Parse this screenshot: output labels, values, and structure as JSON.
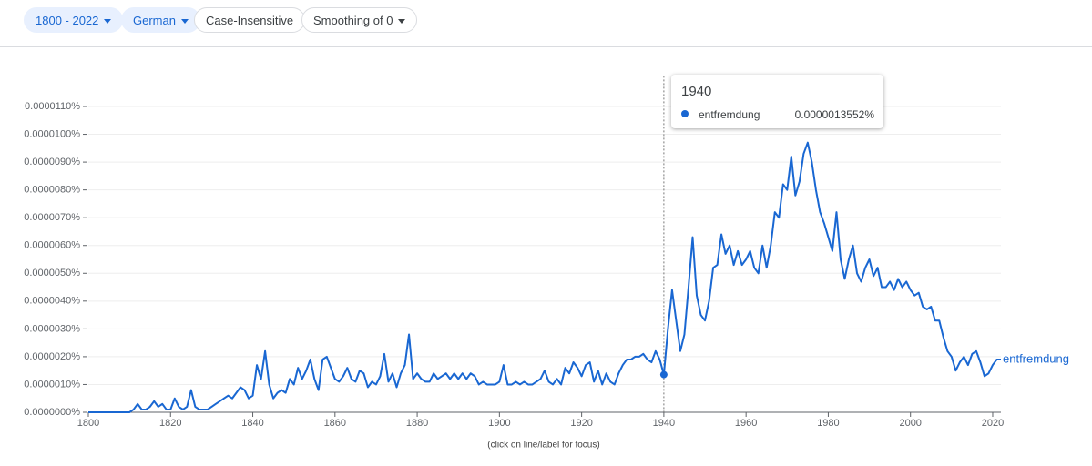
{
  "controls": {
    "year_range": "1800 - 2022",
    "corpus": "German",
    "case": "Case-Insensitive",
    "smoothing": "Smoothing of 0"
  },
  "chart_data": {
    "type": "line",
    "x": [
      1800,
      1801,
      1802,
      1803,
      1804,
      1805,
      1806,
      1807,
      1808,
      1809,
      1810,
      1811,
      1812,
      1813,
      1814,
      1815,
      1816,
      1817,
      1818,
      1819,
      1820,
      1821,
      1822,
      1823,
      1824,
      1825,
      1826,
      1827,
      1828,
      1829,
      1830,
      1831,
      1832,
      1833,
      1834,
      1835,
      1836,
      1837,
      1838,
      1839,
      1840,
      1841,
      1842,
      1843,
      1844,
      1845,
      1846,
      1847,
      1848,
      1849,
      1850,
      1851,
      1852,
      1853,
      1854,
      1855,
      1856,
      1857,
      1858,
      1859,
      1860,
      1861,
      1862,
      1863,
      1864,
      1865,
      1866,
      1867,
      1868,
      1869,
      1870,
      1871,
      1872,
      1873,
      1874,
      1875,
      1876,
      1877,
      1878,
      1879,
      1880,
      1881,
      1882,
      1883,
      1884,
      1885,
      1886,
      1887,
      1888,
      1889,
      1890,
      1891,
      1892,
      1893,
      1894,
      1895,
      1896,
      1897,
      1898,
      1899,
      1900,
      1901,
      1902,
      1903,
      1904,
      1905,
      1906,
      1907,
      1908,
      1909,
      1910,
      1911,
      1912,
      1913,
      1914,
      1915,
      1916,
      1917,
      1918,
      1919,
      1920,
      1921,
      1922,
      1923,
      1924,
      1925,
      1926,
      1927,
      1928,
      1929,
      1930,
      1931,
      1932,
      1933,
      1934,
      1935,
      1936,
      1937,
      1938,
      1939,
      1940,
      1941,
      1942,
      1943,
      1944,
      1945,
      1946,
      1947,
      1948,
      1949,
      1950,
      1951,
      1952,
      1953,
      1954,
      1955,
      1956,
      1957,
      1958,
      1959,
      1960,
      1961,
      1962,
      1963,
      1964,
      1965,
      1966,
      1967,
      1968,
      1969,
      1970,
      1971,
      1972,
      1973,
      1974,
      1975,
      1976,
      1977,
      1978,
      1979,
      1980,
      1981,
      1982,
      1983,
      1984,
      1985,
      1986,
      1987,
      1988,
      1989,
      1990,
      1991,
      1992,
      1993,
      1994,
      1995,
      1996,
      1997,
      1998,
      1999,
      2000,
      2001,
      2002,
      2003,
      2004,
      2005,
      2006,
      2007,
      2008,
      2009,
      2010,
      2011,
      2012,
      2013,
      2014,
      2015,
      2016,
      2017,
      2018,
      2019,
      2020,
      2021,
      2022
    ],
    "series": [
      {
        "name": "entfremdung",
        "color": "#1967d2",
        "values": [
          0,
          0,
          0,
          0,
          0,
          0,
          0,
          0,
          0,
          0,
          0,
          1e-07,
          3e-07,
          1e-07,
          1e-07,
          2e-07,
          4e-07,
          2e-07,
          3e-07,
          1e-07,
          1e-07,
          5e-07,
          2e-07,
          1e-07,
          2e-07,
          8e-07,
          2e-07,
          1e-07,
          1e-07,
          1e-07,
          2e-07,
          3e-07,
          4e-07,
          5e-07,
          6e-07,
          5e-07,
          7e-07,
          9e-07,
          8e-07,
          5e-07,
          6e-07,
          1.7e-06,
          1.2e-06,
          2.2e-06,
          1e-06,
          5e-07,
          7e-07,
          8e-07,
          7e-07,
          1.2e-06,
          1e-06,
          1.6e-06,
          1.2e-06,
          1.5e-06,
          1.9e-06,
          1.2e-06,
          8e-07,
          1.9e-06,
          2e-06,
          1.6e-06,
          1.2e-06,
          1.1e-06,
          1.3e-06,
          1.6e-06,
          1.2e-06,
          1.1e-06,
          1.5e-06,
          1.4e-06,
          9e-07,
          1.1e-06,
          1e-06,
          1.3e-06,
          2.1e-06,
          1.1e-06,
          1.4e-06,
          9e-07,
          1.4e-06,
          1.7e-06,
          2.8e-06,
          1.2e-06,
          1.4e-06,
          1.2e-06,
          1.1e-06,
          1.1e-06,
          1.4e-06,
          1.2e-06,
          1.3e-06,
          1.4e-06,
          1.2e-06,
          1.4e-06,
          1.2e-06,
          1.4e-06,
          1.2e-06,
          1.4e-06,
          1.3e-06,
          1e-06,
          1.1e-06,
          1e-06,
          1e-06,
          1e-06,
          1.1e-06,
          1.7e-06,
          1e-06,
          1e-06,
          1.1e-06,
          1e-06,
          1.1e-06,
          1e-06,
          1e-06,
          1.1e-06,
          1.2e-06,
          1.5e-06,
          1.1e-06,
          1e-06,
          1.2e-06,
          1e-06,
          1.6e-06,
          1.4e-06,
          1.8e-06,
          1.6e-06,
          1.3e-06,
          1.7e-06,
          1.8e-06,
          1.1e-06,
          1.5e-06,
          1e-06,
          1.4e-06,
          1.1e-06,
          1e-06,
          1.4e-06,
          1.7e-06,
          1.9e-06,
          1.9e-06,
          2e-06,
          2e-06,
          2.1e-06,
          1.9e-06,
          1.8e-06,
          2.2e-06,
          1.9e-06,
          1.3552e-06,
          3e-06,
          4.4e-06,
          3.3e-06,
          2.2e-06,
          2.8e-06,
          4.5e-06,
          6.3e-06,
          4.2e-06,
          3.5e-06,
          3.3e-06,
          4e-06,
          5.2e-06,
          5.3e-06,
          6.4e-06,
          5.7e-06,
          6e-06,
          5.3e-06,
          5.8e-06,
          5.3e-06,
          5.5e-06,
          5.8e-06,
          5.2e-06,
          5e-06,
          6e-06,
          5.2e-06,
          6e-06,
          7.2e-06,
          7e-06,
          8.2e-06,
          8e-06,
          9.2e-06,
          7.8e-06,
          8.3e-06,
          9.3e-06,
          9.7e-06,
          9e-06,
          8e-06,
          7.2e-06,
          6.8e-06,
          6.3e-06,
          5.8e-06,
          7.2e-06,
          5.5e-06,
          4.8e-06,
          5.5e-06,
          6e-06,
          5e-06,
          4.7e-06,
          5.2e-06,
          5.5e-06,
          4.9e-06,
          5.2e-06,
          4.5e-06,
          4.5e-06,
          4.7e-06,
          4.4e-06,
          4.8e-06,
          4.5e-06,
          4.7e-06,
          4.4e-06,
          4.2e-06,
          4.3e-06,
          3.8e-06,
          3.7e-06,
          3.8e-06,
          3.3e-06,
          3.3e-06,
          2.7e-06,
          2.2e-06,
          2e-06,
          1.5e-06,
          1.8e-06,
          2e-06,
          1.7e-06,
          2.1e-06,
          2.2e-06,
          1.8e-06,
          1.3e-06,
          1.4e-06,
          1.7e-06,
          1.9e-06,
          1.9e-06
        ]
      }
    ],
    "xlim": [
      1800,
      2022
    ],
    "xticks": [
      1800,
      1820,
      1840,
      1860,
      1880,
      1900,
      1920,
      1940,
      1960,
      1980,
      2000,
      2020
    ],
    "ylim": [
      0,
      1.21e-05
    ],
    "yticks": [
      {
        "value": 0,
        "label": "0.0000000%"
      },
      {
        "value": 1e-06,
        "label": "0.0000010%"
      },
      {
        "value": 2e-06,
        "label": "0.0000020%"
      },
      {
        "value": 3e-06,
        "label": "0.0000030%"
      },
      {
        "value": 4e-06,
        "label": "0.0000040%"
      },
      {
        "value": 5e-06,
        "label": "0.0000050%"
      },
      {
        "value": 6e-06,
        "label": "0.0000060%"
      },
      {
        "value": 7e-06,
        "label": "0.0000070%"
      },
      {
        "value": 8e-06,
        "label": "0.0000080%"
      },
      {
        "value": 9e-06,
        "label": "0.0000090%"
      },
      {
        "value": 1e-05,
        "label": "0.0000100%"
      },
      {
        "value": 1.1e-05,
        "label": "0.0000110%"
      }
    ],
    "grid": true,
    "note": "(click on line/label for focus)",
    "tooltip": {
      "x": 1940,
      "value_label": "0.0000013552%"
    }
  }
}
